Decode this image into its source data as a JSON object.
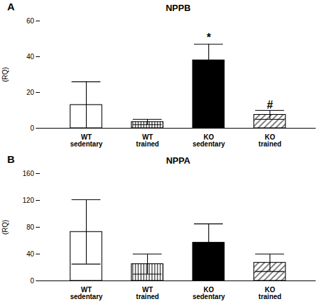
{
  "chart_data": [
    {
      "type": "bar",
      "title": "NPPB",
      "panel_label": "A",
      "ylabel": "(RQ)",
      "categories": [
        "WT\nsedentary",
        "WT\ntrained",
        "KO\nsedentary",
        "KO\ntrained"
      ],
      "values": [
        13.0,
        3.5,
        38.0,
        7.5
      ],
      "errors": [
        13.0,
        1.5,
        9.0,
        2.5
      ],
      "colors": [
        "white",
        "white",
        "black",
        "white"
      ],
      "ylim": [
        0,
        60
      ],
      "yticks": [
        0,
        20,
        40,
        60
      ],
      "annotations": [
        {
          "text": "*",
          "x": "KO\nsedentary",
          "y": 48.5
        },
        {
          "text": "#",
          "x": "KO\ntrained",
          "y": 11.0
        }
      ]
    },
    {
      "type": "bar",
      "title": "NPPA",
      "panel_label": "B",
      "ylabel": "(RQ)",
      "categories": [
        "WT\nsedentary",
        "WT\ntrained",
        "KO\nsedentary",
        "KO\ntrained"
      ],
      "values": [
        73.0,
        25.0,
        57.0,
        27.0
      ],
      "errors": [
        48.0,
        15.0,
        28.0,
        13.0
      ],
      "colors": [
        "white",
        "white",
        "black",
        "white"
      ],
      "ylim": [
        0,
        160
      ],
      "yticks": [
        0,
        40,
        80,
        120,
        160
      ]
    }
  ]
}
